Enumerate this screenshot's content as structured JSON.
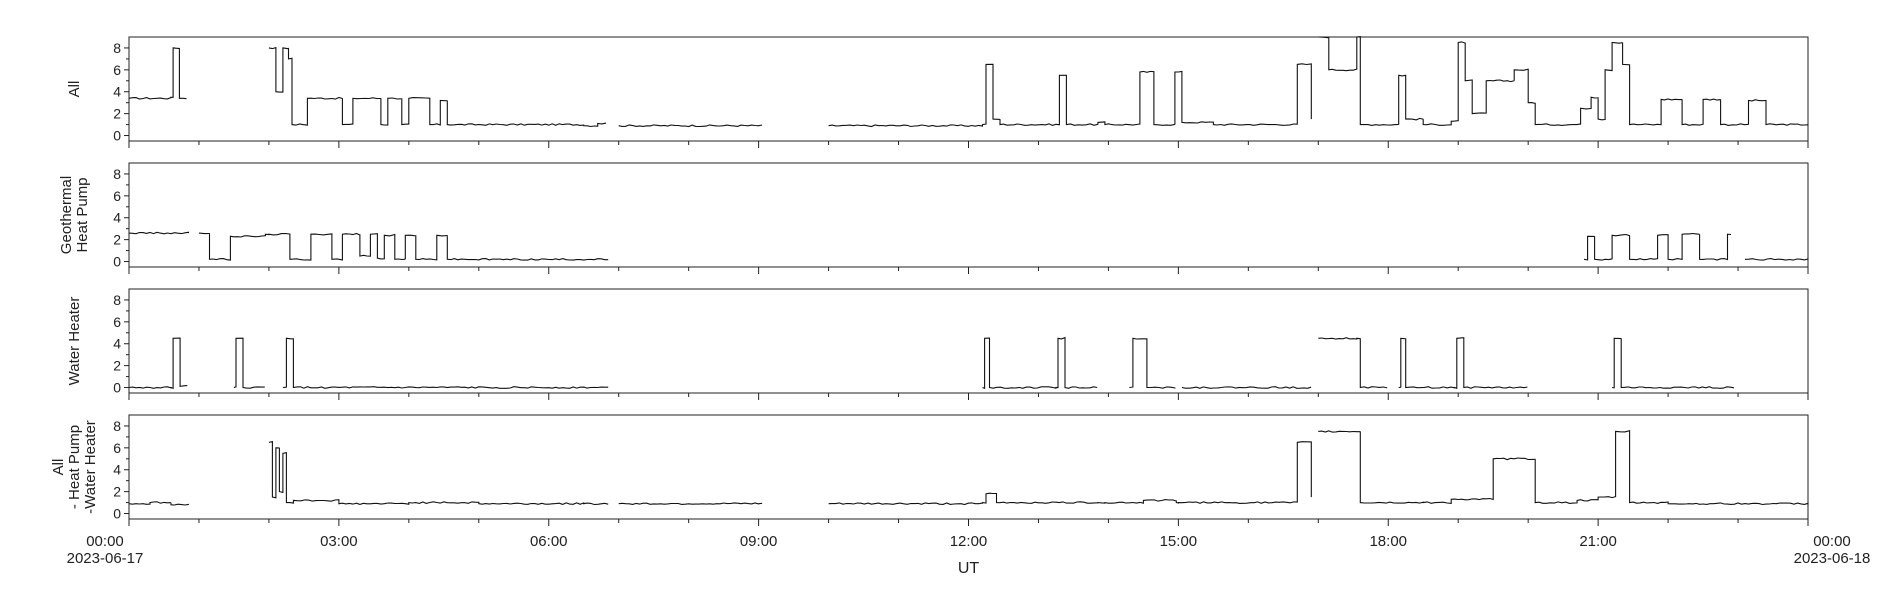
{
  "chart_data": {
    "type": "line",
    "xlabel": "UT",
    "x_range": [
      "2023-06-17 00:00",
      "2023-06-18 00:00"
    ],
    "x_ticks": [
      {
        "hour": 0,
        "label": "00:00",
        "date": "2023-06-17"
      },
      {
        "hour": 3,
        "label": "03:00",
        "date": ""
      },
      {
        "hour": 6,
        "label": "06:00",
        "date": ""
      },
      {
        "hour": 9,
        "label": "09:00",
        "date": ""
      },
      {
        "hour": 12,
        "label": "12:00",
        "date": ""
      },
      {
        "hour": 15,
        "label": "15:00",
        "date": ""
      },
      {
        "hour": 18,
        "label": "18:00",
        "date": ""
      },
      {
        "hour": 21,
        "label": "21:00",
        "date": ""
      },
      {
        "hour": 24,
        "label": "00:00",
        "date": "2023-06-18"
      }
    ],
    "panels": [
      {
        "id": "all",
        "ylabel": [
          "All"
        ],
        "ylim": [
          -0.5,
          9
        ],
        "yticks": [
          0,
          2,
          4,
          6,
          8
        ],
        "gaps": [
          [
            0.85,
            2.0
          ],
          [
            6.85,
            7.0
          ],
          [
            9.05,
            10.0
          ],
          [
            13.85,
            13.95
          ],
          [
            14.97,
            15.0
          ],
          [
            16.9,
            17.0
          ]
        ],
        "segments": [
          [
            0,
            3.4
          ],
          [
            0.6,
            3.5
          ],
          [
            0.63,
            8.0
          ],
          [
            0.72,
            3.4
          ],
          [
            2.0,
            8.0
          ],
          [
            2.1,
            4.0
          ],
          [
            2.2,
            8.0
          ],
          [
            2.28,
            7.0
          ],
          [
            2.33,
            1.0
          ],
          [
            2.55,
            3.4
          ],
          [
            3.05,
            1.0
          ],
          [
            3.2,
            3.4
          ],
          [
            3.6,
            1.0
          ],
          [
            3.7,
            3.4
          ],
          [
            3.9,
            1.0
          ],
          [
            4.0,
            3.4
          ],
          [
            4.3,
            1.0
          ],
          [
            4.45,
            3.2
          ],
          [
            4.55,
            1.0
          ],
          [
            5.0,
            1.0
          ],
          [
            6.5,
            0.9
          ],
          [
            6.7,
            1.1
          ],
          [
            7.0,
            0.9
          ],
          [
            9.0,
            0.9
          ],
          [
            10.0,
            0.9
          ],
          [
            12.2,
            1.0
          ],
          [
            12.25,
            6.5
          ],
          [
            12.35,
            1.5
          ],
          [
            12.45,
            1.0
          ],
          [
            13.3,
            5.5
          ],
          [
            13.4,
            1.0
          ],
          [
            13.85,
            1.2
          ],
          [
            13.95,
            1.0
          ],
          [
            14.45,
            5.8
          ],
          [
            14.65,
            1.0
          ],
          [
            14.95,
            5.8
          ],
          [
            15.05,
            1.2
          ],
          [
            15.5,
            1.0
          ],
          [
            16.7,
            6.5
          ],
          [
            16.9,
            1.5
          ],
          [
            17.0,
            9.0
          ],
          [
            17.15,
            6.0
          ],
          [
            17.55,
            9.0
          ],
          [
            17.6,
            1.0
          ],
          [
            18.15,
            5.5
          ],
          [
            18.25,
            1.5
          ],
          [
            18.5,
            1.0
          ],
          [
            18.9,
            1.3
          ],
          [
            19.0,
            8.5
          ],
          [
            19.1,
            5.0
          ],
          [
            19.2,
            2.0
          ],
          [
            19.4,
            5.0
          ],
          [
            19.8,
            6.0
          ],
          [
            20.0,
            3.0
          ],
          [
            20.1,
            1.0
          ],
          [
            20.75,
            2.5
          ],
          [
            20.9,
            3.5
          ],
          [
            21.0,
            1.5
          ],
          [
            21.1,
            6.0
          ],
          [
            21.2,
            8.5
          ],
          [
            21.35,
            6.5
          ],
          [
            21.45,
            1.0
          ],
          [
            21.9,
            3.3
          ],
          [
            22.2,
            1.0
          ],
          [
            22.5,
            3.3
          ],
          [
            22.75,
            1.0
          ],
          [
            23.15,
            3.2
          ],
          [
            23.4,
            1.0
          ],
          [
            24.0,
            0.9
          ]
        ]
      },
      {
        "id": "geothermal",
        "ylabel": [
          "Geothermal",
          "Heat Pump"
        ],
        "ylim": [
          -0.5,
          9
        ],
        "yticks": [
          0,
          2,
          4,
          6,
          8
        ],
        "gaps": [
          [
            0.85,
            1.0
          ],
          [
            1.95,
            2.0
          ],
          [
            6.85,
            7.0
          ],
          [
            9.05,
            10.0
          ],
          [
            13.85,
            13.95
          ],
          [
            14.97,
            15.0
          ],
          [
            16.9,
            17.0
          ],
          [
            18.0,
            18.05
          ],
          [
            19.0,
            19.05
          ],
          [
            20.0,
            20.05
          ],
          [
            22.95,
            23.0
          ]
        ],
        "segments": [
          [
            0,
            2.6
          ],
          [
            0.85,
            2.6
          ],
          [
            1.0,
            2.6
          ],
          [
            1.15,
            0.2
          ],
          [
            1.45,
            2.3
          ],
          [
            1.95,
            2.5
          ],
          [
            2.0,
            2.5
          ],
          [
            2.3,
            0.2
          ],
          [
            2.6,
            2.5
          ],
          [
            2.9,
            0.2
          ],
          [
            3.05,
            2.5
          ],
          [
            3.3,
            0.5
          ],
          [
            3.45,
            2.5
          ],
          [
            3.55,
            0.3
          ],
          [
            3.65,
            2.4
          ],
          [
            3.8,
            0.2
          ],
          [
            3.95,
            2.4
          ],
          [
            4.1,
            0.2
          ],
          [
            4.4,
            2.4
          ],
          [
            4.55,
            0.2
          ],
          [
            24.0,
            0.2
          ]
        ],
        "overlay": [
          [
            20.8,
            0.2
          ],
          [
            20.85,
            2.3
          ],
          [
            20.95,
            0.2
          ],
          [
            21.2,
            2.4
          ],
          [
            21.45,
            0.2
          ],
          [
            21.85,
            2.4
          ],
          [
            22.0,
            0.2
          ],
          [
            22.2,
            2.5
          ],
          [
            22.45,
            0.2
          ],
          [
            22.85,
            2.5
          ],
          [
            23.1,
            0.2
          ],
          [
            24.0,
            0.2
          ]
        ]
      },
      {
        "id": "water",
        "ylabel": [
          "Water Heater"
        ],
        "ylim": [
          -0.5,
          9
        ],
        "yticks": [
          0,
          2,
          4,
          6,
          8
        ],
        "gaps": [
          [
            0.85,
            1.0
          ],
          [
            1.95,
            2.0
          ],
          [
            6.85,
            7.0
          ],
          [
            9.05,
            10.0
          ],
          [
            13.85,
            13.95
          ],
          [
            14.97,
            15.0
          ],
          [
            16.9,
            17.0
          ],
          [
            18.0,
            18.05
          ],
          [
            19.0,
            19.05
          ],
          [
            20.0,
            20.05
          ],
          [
            22.95,
            23.0
          ]
        ],
        "segments": [
          [
            0,
            0
          ],
          [
            0.6,
            0
          ],
          [
            0.63,
            4.5
          ],
          [
            0.73,
            0.1
          ],
          [
            1.5,
            0
          ],
          [
            1.53,
            4.5
          ],
          [
            1.63,
            0
          ],
          [
            2.2,
            0
          ],
          [
            2.25,
            4.5
          ],
          [
            2.35,
            0
          ],
          [
            12.2,
            0
          ],
          [
            12.23,
            4.5
          ],
          [
            12.3,
            0
          ],
          [
            13.25,
            0
          ],
          [
            13.28,
            4.5
          ],
          [
            13.38,
            0
          ],
          [
            14.3,
            0
          ],
          [
            14.35,
            4.5
          ],
          [
            14.55,
            0
          ],
          [
            14.95,
            0
          ],
          [
            14.98,
            4.5
          ],
          [
            15.05,
            0
          ],
          [
            17.0,
            4.5
          ],
          [
            17.55,
            4.5
          ],
          [
            17.6,
            0
          ],
          [
            18.15,
            0
          ],
          [
            18.18,
            4.5
          ],
          [
            18.25,
            0
          ],
          [
            18.95,
            0
          ],
          [
            18.98,
            4.5
          ],
          [
            19.08,
            0
          ],
          [
            21.2,
            0
          ],
          [
            21.23,
            4.5
          ],
          [
            21.33,
            0
          ],
          [
            24.0,
            0
          ]
        ]
      },
      {
        "id": "residual",
        "ylabel": [
          "All",
          "- Heat Pump",
          "-Water Heater"
        ],
        "ylim": [
          -0.5,
          9
        ],
        "yticks": [
          0,
          2,
          4,
          6,
          8
        ],
        "gaps": [
          [
            0.85,
            2.0
          ],
          [
            6.85,
            7.0
          ],
          [
            9.05,
            10.0
          ],
          [
            13.85,
            13.95
          ],
          [
            14.97,
            15.0
          ],
          [
            16.9,
            17.0
          ]
        ],
        "segments": [
          [
            0,
            0.9
          ],
          [
            0.3,
            1.0
          ],
          [
            0.6,
            0.8
          ],
          [
            0.85,
            0.8
          ],
          [
            2.0,
            6.5
          ],
          [
            2.05,
            1.5
          ],
          [
            2.1,
            6.0
          ],
          [
            2.15,
            2.0
          ],
          [
            2.2,
            5.5
          ],
          [
            2.25,
            1.0
          ],
          [
            2.35,
            1.2
          ],
          [
            3.0,
            0.9
          ],
          [
            4.0,
            1.0
          ],
          [
            5.0,
            0.9
          ],
          [
            6.5,
            0.9
          ],
          [
            7.0,
            0.9
          ],
          [
            9.0,
            0.9
          ],
          [
            10.0,
            0.9
          ],
          [
            12.2,
            1.0
          ],
          [
            12.25,
            1.8
          ],
          [
            12.4,
            1.0
          ],
          [
            12.45,
            1.0
          ],
          [
            13.85,
            1.0
          ],
          [
            13.95,
            1.0
          ],
          [
            14.5,
            1.2
          ],
          [
            14.97,
            1.0
          ],
          [
            15.0,
            1.0
          ],
          [
            16.7,
            6.5
          ],
          [
            16.9,
            1.5
          ],
          [
            17.0,
            7.5
          ],
          [
            17.6,
            1.0
          ],
          [
            18.5,
            1.0
          ],
          [
            18.9,
            1.3
          ],
          [
            19.5,
            5.0
          ],
          [
            20.1,
            1.0
          ],
          [
            20.7,
            1.2
          ],
          [
            21.0,
            1.5
          ],
          [
            21.25,
            7.5
          ],
          [
            21.45,
            1.0
          ],
          [
            22.0,
            0.9
          ],
          [
            24.0,
            0.8
          ]
        ]
      }
    ]
  }
}
